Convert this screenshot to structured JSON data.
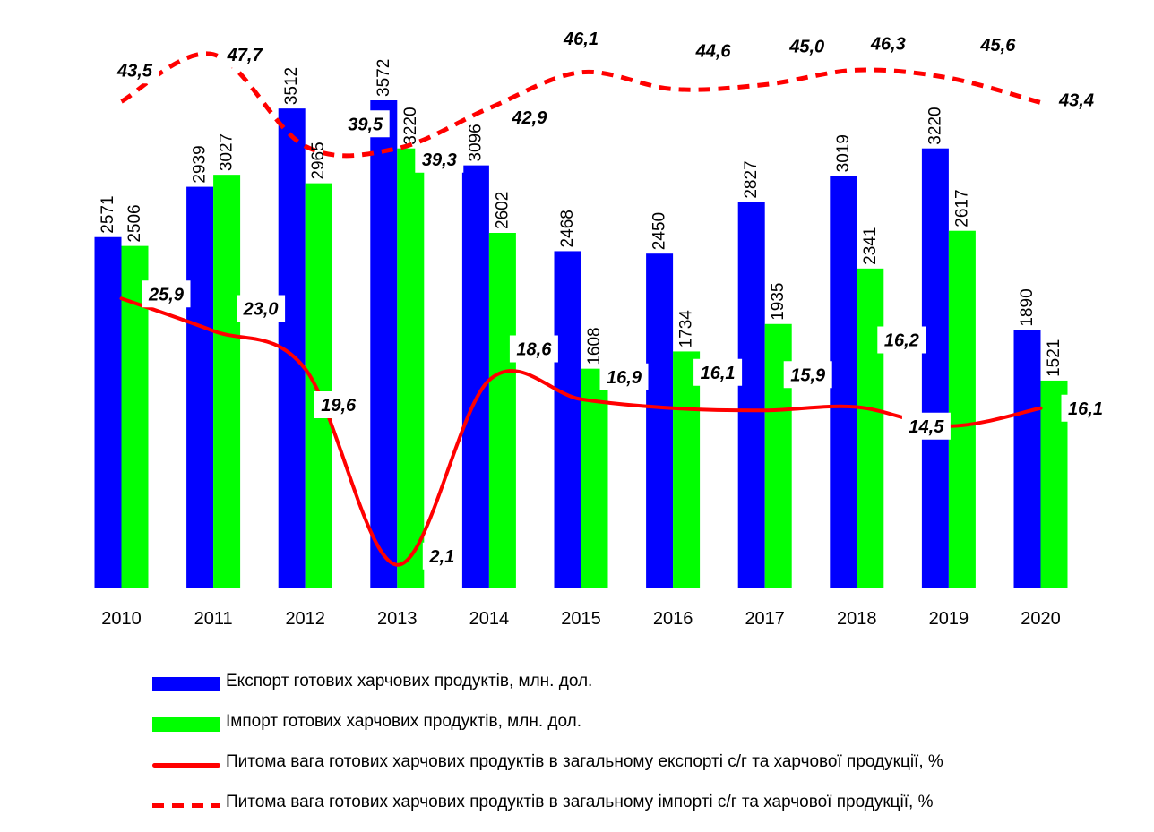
{
  "chart_data": {
    "type": "bar",
    "categories": [
      "2010",
      "2011",
      "2012",
      "2013",
      "2014",
      "2015",
      "2016",
      "2017",
      "2018",
      "2019",
      "2020"
    ],
    "ylim": [
      0,
      3700
    ],
    "ylim_percent": [
      0,
      50
    ],
    "grid": false,
    "legend_position": "bottom",
    "series": [
      {
        "name": "Експорт готових харчових продуктів, млн. дол.",
        "kind": "bar",
        "color": "#0000ff",
        "values": [
          2571,
          2939,
          3512,
          3572,
          3096,
          2468,
          2450,
          2827,
          3019,
          3220,
          1890
        ],
        "labels": [
          "2571",
          "2939",
          "3512",
          "3572",
          "3096",
          "2468",
          "2450",
          "2827",
          "3019",
          "3220",
          "1890"
        ]
      },
      {
        "name": "Імпорт готових харчових продуктів, млн. дол.",
        "kind": "bar",
        "color": "#00ff00",
        "values": [
          2506,
          3027,
          2965,
          3220,
          2602,
          1608,
          1734,
          1935,
          2341,
          2617,
          1521
        ],
        "labels": [
          "2506",
          "3027",
          "2965",
          "3220",
          "2602",
          "1608",
          "1734",
          "1935",
          "2341",
          "2617",
          "1521"
        ]
      },
      {
        "name": "Питома вага готових харчових продуктів в загальному експорті с/г та харчової продукції, %",
        "kind": "line",
        "style": "solid",
        "color": "#ff0000",
        "values": [
          25.9,
          23.0,
          19.6,
          2.1,
          18.6,
          16.9,
          16.1,
          15.9,
          16.2,
          14.5,
          16.1
        ],
        "labels": [
          "25,9",
          "23,0",
          "19,6",
          "2,1",
          "18,6",
          "16,9",
          "16,1",
          "15,9",
          "16,2",
          "14,5",
          "16,1"
        ]
      },
      {
        "name": "Питома вага готових харчових продуктів в загальному імпорті с/г та харчової продукції, %",
        "kind": "line",
        "style": "dashed",
        "color": "#ff0000",
        "values": [
          43.5,
          47.7,
          39.5,
          39.3,
          42.9,
          46.1,
          44.6,
          45.0,
          46.3,
          45.6,
          43.4
        ],
        "labels": [
          "43,5",
          "47,7",
          "39,5",
          "39,3",
          "42,9",
          "46,1",
          "44,6",
          "45,0",
          "46,3",
          "45,6",
          "43,4"
        ]
      }
    ]
  }
}
